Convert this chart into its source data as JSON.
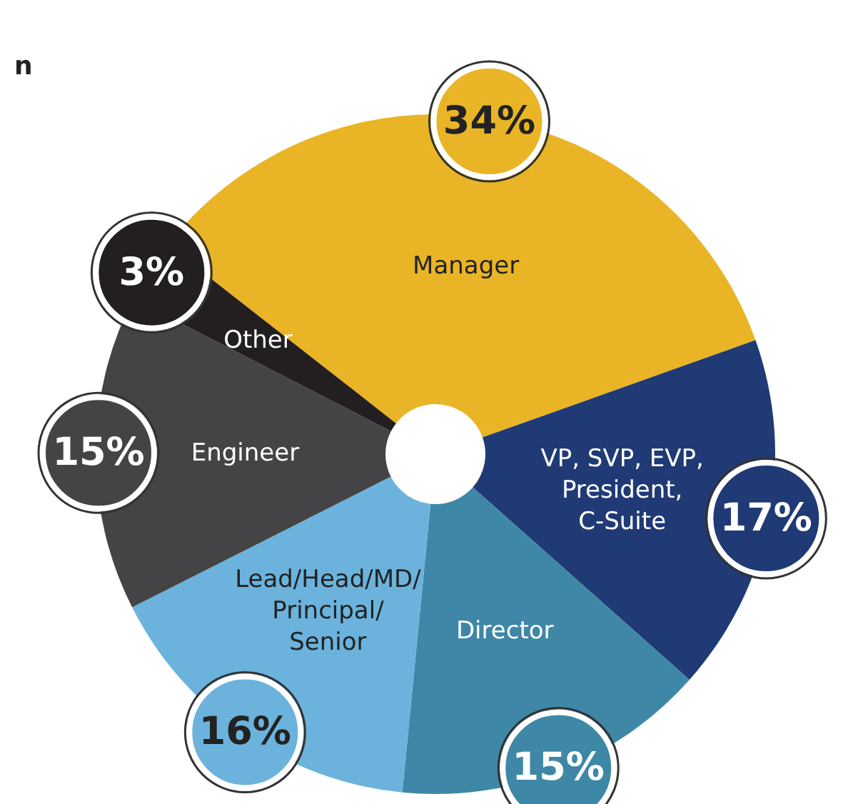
{
  "chart_data": {
    "type": "donut",
    "categories": [
      "Manager",
      "VP, SVP, EVP, President, C-Suite",
      "Director",
      "Lead/Head/MD/Principal/Senior",
      "Engineer",
      "Other"
    ],
    "values": [
      34,
      17,
      15,
      16,
      15,
      3
    ],
    "colors": [
      "#e9b526",
      "#1f3a75",
      "#3f87a6",
      "#6bb3dc",
      "#444446",
      "#231f20"
    ],
    "value_labels": [
      "34%",
      "17%",
      "15%",
      "16%",
      "15%",
      "3%"
    ],
    "annotations": [
      "n"
    ]
  }
}
